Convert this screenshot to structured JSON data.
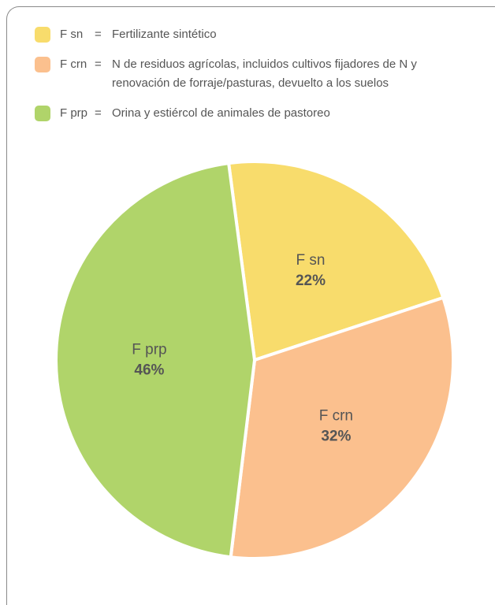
{
  "chart_data": {
    "type": "pie",
    "categories": [
      "F sn",
      "F crn",
      "F prp"
    ],
    "values": [
      22,
      32,
      46
    ],
    "value_labels": [
      "22%",
      "32%",
      "46%"
    ],
    "colors": [
      "#f8dc6c",
      "#fbc08e",
      "#b0d46a"
    ],
    "legend_separator": "=",
    "legend_descriptions": [
      "Fertilizante sintético",
      "N de residuos agrícolas, incluidos cultivos fijadores de N y renovación de forraje/pasturas, devuelto a los suelos",
      "Orina y estiércol de animales de pastoreo"
    ]
  }
}
